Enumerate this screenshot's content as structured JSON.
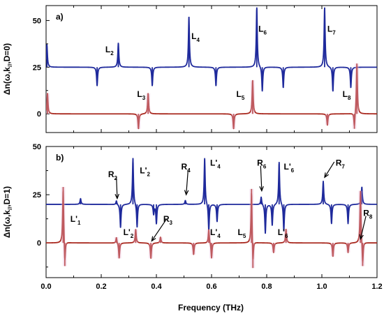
{
  "figure": {
    "xlabel": "Frequency (THz)",
    "xticks": [
      "0.0",
      "0.2",
      "0.4",
      "0.6",
      "0.8",
      "1.0",
      "1.2"
    ]
  },
  "chart_data": [
    {
      "type": "line",
      "panel": "a)",
      "ylabel": "Δn(ω,k",
      "ylabel_sub": "//",
      "ylabel_tail": ",D=0)",
      "xlim": [
        0.0,
        1.2
      ],
      "ylim": [
        -10,
        58
      ],
      "yticks": [
        0,
        25,
        50
      ],
      "grid": false,
      "series": [
        {
          "color": "#1f2a9c",
          "baseline": 25,
          "features": [
            {
              "x": 0.003,
              "y": 37
            },
            {
              "x": 0.185,
              "y": 15
            },
            {
              "x": 0.262,
              "y": 38
            },
            {
              "x": 0.385,
              "y": 15
            },
            {
              "x": 0.518,
              "y": 52
            },
            {
              "x": 0.616,
              "y": 15
            },
            {
              "x": 0.764,
              "y": 57
            },
            {
              "x": 0.784,
              "y": 12
            },
            {
              "x": 0.86,
              "y": 14
            },
            {
              "x": 1.01,
              "y": 57
            },
            {
              "x": 1.04,
              "y": 12
            },
            {
              "x": 1.105,
              "y": 14
            }
          ]
        },
        {
          "color": "#a9291f",
          "baseline": 0,
          "features": [
            {
              "x": 0.005,
              "y": 11
            },
            {
              "x": 0.335,
              "y": -8
            },
            {
              "x": 0.37,
              "y": 11
            },
            {
              "x": 0.68,
              "y": -8
            },
            {
              "x": 0.749,
              "y": 18
            },
            {
              "x": 1.02,
              "y": -6
            },
            {
              "x": 1.118,
              "y": -8
            },
            {
              "x": 1.127,
              "y": 27
            }
          ]
        }
      ],
      "annotations": [
        {
          "label": "L",
          "sub": "2",
          "x": 0.215,
          "y": 33
        },
        {
          "label": "L",
          "sub": "4",
          "x": 0.527,
          "y": 40
        },
        {
          "label": "L",
          "sub": "6",
          "x": 0.77,
          "y": 44
        },
        {
          "label": "L",
          "sub": "7",
          "x": 1.02,
          "y": 44
        },
        {
          "label": "L",
          "sub": "3",
          "x": 0.33,
          "y": 9
        },
        {
          "label": "L",
          "sub": "5",
          "x": 0.69,
          "y": 9
        },
        {
          "label": "L",
          "sub": "8",
          "x": 1.075,
          "y": 9
        }
      ]
    },
    {
      "type": "line",
      "panel": "b)",
      "ylabel": "Δn(ω,k",
      "ylabel_sub": "//",
      "ylabel_tail": ",D=1)",
      "xlim": [
        0.0,
        1.2
      ],
      "ylim": [
        -18,
        50
      ],
      "yticks": [
        0,
        25,
        50
      ],
      "grid": false,
      "series": [
        {
          "color": "#1f2a9c",
          "baseline": 20,
          "features": [
            {
              "x": 0.125,
              "y": 23
            },
            {
              "x": 0.255,
              "y": 22
            },
            {
              "x": 0.27,
              "y": 8
            },
            {
              "x": 0.315,
              "y": 44
            },
            {
              "x": 0.33,
              "y": 8
            },
            {
              "x": 0.39,
              "y": 15
            },
            {
              "x": 0.4,
              "y": 10
            },
            {
              "x": 0.505,
              "y": 22
            },
            {
              "x": 0.575,
              "y": 44
            },
            {
              "x": 0.59,
              "y": 6
            },
            {
              "x": 0.62,
              "y": 11
            },
            {
              "x": 0.78,
              "y": 24
            },
            {
              "x": 0.795,
              "y": 5
            },
            {
              "x": 0.82,
              "y": 9
            },
            {
              "x": 0.845,
              "y": 42
            },
            {
              "x": 0.862,
              "y": 6
            },
            {
              "x": 1.005,
              "y": 32
            },
            {
              "x": 1.035,
              "y": 10
            },
            {
              "x": 1.095,
              "y": 10
            },
            {
              "x": 1.145,
              "y": 29
            }
          ]
        },
        {
          "color": "#a9291f",
          "baseline": 0,
          "features": [
            {
              "x": 0.062,
              "y": 29
            },
            {
              "x": 0.068,
              "y": -12
            },
            {
              "x": 0.255,
              "y": 3
            },
            {
              "x": 0.265,
              "y": -8
            },
            {
              "x": 0.325,
              "y": 7
            },
            {
              "x": 0.38,
              "y": -8
            },
            {
              "x": 0.415,
              "y": 3
            },
            {
              "x": 0.535,
              "y": -6
            },
            {
              "x": 0.59,
              "y": 7
            },
            {
              "x": 0.6,
              "y": -8
            },
            {
              "x": 0.745,
              "y": 28
            },
            {
              "x": 0.75,
              "y": -13
            },
            {
              "x": 0.825,
              "y": -5
            },
            {
              "x": 0.87,
              "y": 7
            },
            {
              "x": 1.04,
              "y": -7
            },
            {
              "x": 1.095,
              "y": -5
            },
            {
              "x": 1.14,
              "y": 27
            },
            {
              "x": 1.148,
              "y": -12
            }
          ]
        }
      ],
      "annotations": [
        {
          "label": "R",
          "sub": "2",
          "x": 0.225,
          "y": 34
        },
        {
          "label": "L'",
          "sub": "2",
          "x": 0.34,
          "y": 36
        },
        {
          "label": "R",
          "sub": "4",
          "x": 0.49,
          "y": 38
        },
        {
          "label": "L'",
          "sub": "4",
          "x": 0.595,
          "y": 40
        },
        {
          "label": "R",
          "sub": "6",
          "x": 0.765,
          "y": 40
        },
        {
          "label": "L'",
          "sub": "6",
          "x": 0.862,
          "y": 38
        },
        {
          "label": "R",
          "sub": "7",
          "x": 1.05,
          "y": 40
        },
        {
          "label": "L'",
          "sub": "1",
          "x": 0.088,
          "y": 11
        },
        {
          "label": "L'",
          "sub": "2",
          "x": 0.28,
          "y": 4
        },
        {
          "label": "R",
          "sub": "3",
          "x": 0.425,
          "y": 11
        },
        {
          "label": "L'",
          "sub": "4",
          "x": 0.595,
          "y": 4
        },
        {
          "label": "L",
          "sub": "5",
          "x": 0.695,
          "y": 4
        },
        {
          "label": "L'",
          "sub": "6",
          "x": 0.84,
          "y": 4
        },
        {
          "label": "R",
          "sub": "8",
          "x": 1.15,
          "y": 14
        }
      ],
      "arrows": [
        {
          "from": [
            0.255,
            34
          ],
          "to": [
            0.258,
            23
          ]
        },
        {
          "from": [
            0.515,
            38
          ],
          "to": [
            0.508,
            25
          ]
        },
        {
          "from": [
            0.778,
            40
          ],
          "to": [
            0.782,
            27
          ]
        },
        {
          "from": [
            1.045,
            42
          ],
          "to": [
            1.01,
            34
          ]
        },
        {
          "from": [
            0.435,
            12
          ],
          "to": [
            0.383,
            1
          ]
        },
        {
          "from": [
            1.16,
            14
          ],
          "to": [
            1.14,
            2
          ]
        }
      ]
    }
  ]
}
